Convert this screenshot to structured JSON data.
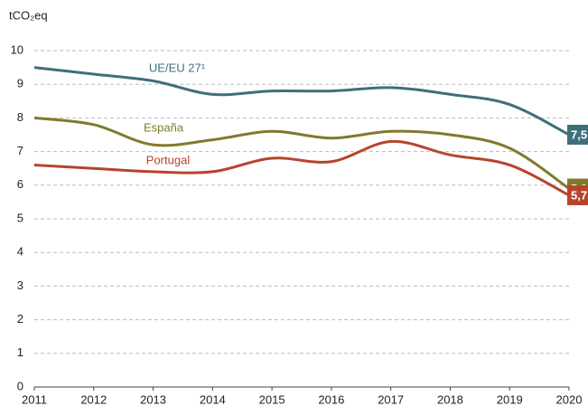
{
  "chart_data": {
    "type": "line",
    "y_label": "tCO₂eq",
    "x": [
      2011,
      2012,
      2013,
      2014,
      2015,
      2016,
      2017,
      2018,
      2019,
      2020
    ],
    "xlim": [
      2011,
      2020
    ],
    "xticks": [
      2011,
      2012,
      2013,
      2014,
      2015,
      2016,
      2017,
      2018,
      2019,
      2020
    ],
    "ylim": [
      0,
      10
    ],
    "yticks": [
      0,
      1,
      2,
      3,
      4,
      5,
      6,
      7,
      8,
      9,
      10
    ],
    "grid": true,
    "series": [
      {
        "name": "UE/EU 27¹",
        "color": "#3f6f7b",
        "values": [
          9.5,
          9.3,
          9.1,
          8.7,
          8.8,
          8.8,
          8.9,
          8.7,
          8.4,
          7.5
        ],
        "value_labels": [
          null,
          null,
          null,
          null,
          null,
          null,
          null,
          null,
          null,
          "7,5"
        ]
      },
      {
        "name": "España",
        "color": "#807a2d",
        "values": [
          8.0,
          7.8,
          7.2,
          7.35,
          7.6,
          7.4,
          7.6,
          7.5,
          7.1,
          5.9
        ],
        "value_labels": [
          null,
          null,
          null,
          null,
          null,
          null,
          null,
          null,
          null,
          "5,9"
        ]
      },
      {
        "name": "Portugal",
        "color": "#b8432b",
        "values": [
          6.6,
          6.5,
          6.4,
          6.4,
          6.8,
          6.7,
          7.3,
          6.9,
          6.6,
          5.7
        ],
        "value_labels": [
          null,
          null,
          null,
          null,
          null,
          null,
          null,
          null,
          null,
          "5,7"
        ]
      }
    ]
  }
}
